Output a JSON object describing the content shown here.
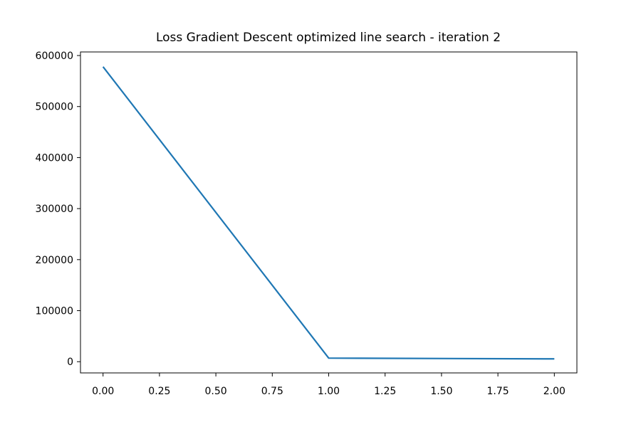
{
  "chart_data": {
    "type": "line",
    "title": "Loss Gradient Descent optimized line search - iteration 2",
    "xlabel": "",
    "ylabel": "",
    "x": [
      0,
      1,
      2
    ],
    "series": [
      {
        "values": [
          578000,
          7000,
          5500
        ],
        "color": "#1f77b4"
      }
    ],
    "xlim": [
      -0.1,
      2.1
    ],
    "ylim": [
      -22000,
      607000
    ],
    "x_ticks": [
      0,
      0.25,
      0.5,
      0.75,
      1,
      1.25,
      1.5,
      1.75,
      2
    ],
    "x_tick_labels": [
      "0.00",
      "0.25",
      "0.50",
      "0.75",
      "1.00",
      "1.25",
      "1.50",
      "1.75",
      "2.00"
    ],
    "y_ticks": [
      0,
      100000,
      200000,
      300000,
      400000,
      500000,
      600000
    ],
    "y_tick_labels": [
      "0",
      "100000",
      "200000",
      "300000",
      "400000",
      "500000",
      "600000"
    ],
    "grid": false,
    "legend": "none"
  }
}
